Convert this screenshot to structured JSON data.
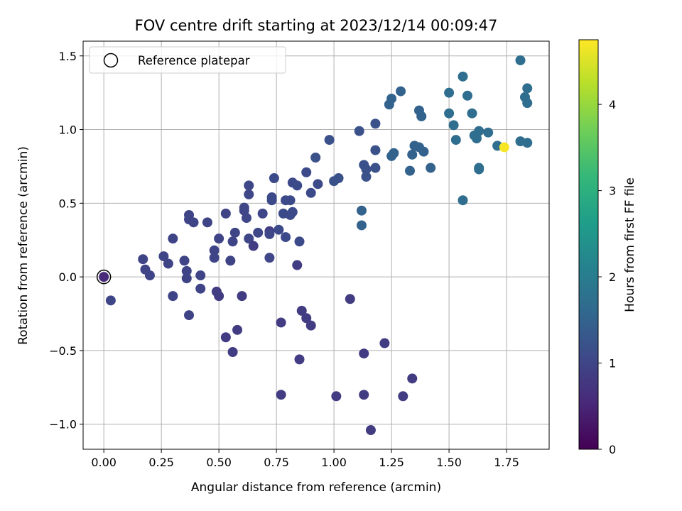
{
  "chart_data": {
    "type": "scatter",
    "title": "FOV centre drift starting at 2023/12/14 00:09:47",
    "xlabel": "Angular distance from reference (arcmin)",
    "ylabel": "Rotation from reference (arcmin)",
    "xlim": [
      -0.09,
      1.935
    ],
    "ylim": [
      -1.17,
      1.6
    ],
    "xticks": [
      0.0,
      0.25,
      0.5,
      0.75,
      1.0,
      1.25,
      1.5,
      1.75
    ],
    "xtick_labels": [
      "0.00",
      "0.25",
      "0.50",
      "0.75",
      "1.00",
      "1.25",
      "1.50",
      "1.75"
    ],
    "yticks": [
      -1.0,
      -0.5,
      0.0,
      0.5,
      1.0,
      1.5
    ],
    "ytick_labels": [
      "−1.0",
      "−0.5",
      "0.0",
      "0.5",
      "1.0",
      "1.5"
    ],
    "grid": true,
    "legend": {
      "position": "upper-left",
      "entries": [
        "Reference platepar"
      ]
    },
    "colorbar": {
      "label": "Hours from first FF file",
      "range": [
        0,
        4.75
      ],
      "ticks": [
        0,
        1,
        2,
        3,
        4
      ],
      "tick_labels": [
        "0",
        "1",
        "2",
        "3",
        "4"
      ],
      "colormap": "viridis",
      "colormap_stops": [
        "#440154",
        "#482878",
        "#3e4989",
        "#31688e",
        "#26828e",
        "#1f9e89",
        "#35b779",
        "#6ece58",
        "#b5de2b",
        "#fde725"
      ]
    },
    "reference_point": {
      "x": 0.0,
      "y": 0.0,
      "marker_color": "#000000"
    },
    "points": [
      {
        "x": 0.0,
        "y": 0.0,
        "c": 0.58
      },
      {
        "x": 0.03,
        "y": -0.16,
        "c": 1.0
      },
      {
        "x": 0.17,
        "y": 0.12,
        "c": 0.98
      },
      {
        "x": 0.18,
        "y": 0.05,
        "c": 0.98
      },
      {
        "x": 0.2,
        "y": 0.01,
        "c": 0.98
      },
      {
        "x": 0.26,
        "y": 0.14,
        "c": 0.98
      },
      {
        "x": 0.28,
        "y": 0.09,
        "c": 0.98
      },
      {
        "x": 0.3,
        "y": 0.26,
        "c": 0.98
      },
      {
        "x": 0.3,
        "y": -0.13,
        "c": 0.98
      },
      {
        "x": 0.35,
        "y": 0.11,
        "c": 0.98
      },
      {
        "x": 0.36,
        "y": 0.04,
        "c": 0.98
      },
      {
        "x": 0.36,
        "y": -0.01,
        "c": 0.98
      },
      {
        "x": 0.37,
        "y": 0.42,
        "c": 0.98
      },
      {
        "x": 0.37,
        "y": 0.39,
        "c": 0.98
      },
      {
        "x": 0.37,
        "y": -0.26,
        "c": 0.98
      },
      {
        "x": 0.39,
        "y": 0.37,
        "c": 0.98
      },
      {
        "x": 0.42,
        "y": 0.01,
        "c": 0.98
      },
      {
        "x": 0.42,
        "y": -0.08,
        "c": 0.98
      },
      {
        "x": 0.45,
        "y": 0.37,
        "c": 0.98
      },
      {
        "x": 0.48,
        "y": 0.18,
        "c": 0.98
      },
      {
        "x": 0.48,
        "y": 0.13,
        "c": 0.98
      },
      {
        "x": 0.49,
        "y": -0.1,
        "c": 0.85
      },
      {
        "x": 0.5,
        "y": 0.26,
        "c": 0.98
      },
      {
        "x": 0.5,
        "y": -0.13,
        "c": 0.85
      },
      {
        "x": 0.53,
        "y": 0.43,
        "c": 0.98
      },
      {
        "x": 0.53,
        "y": -0.41,
        "c": 0.85
      },
      {
        "x": 0.55,
        "y": 0.11,
        "c": 0.98
      },
      {
        "x": 0.56,
        "y": 0.24,
        "c": 0.98
      },
      {
        "x": 0.56,
        "y": -0.51,
        "c": 0.85
      },
      {
        "x": 0.57,
        "y": 0.3,
        "c": 0.98
      },
      {
        "x": 0.58,
        "y": -0.36,
        "c": 0.85
      },
      {
        "x": 0.6,
        "y": -0.13,
        "c": 0.85
      },
      {
        "x": 0.61,
        "y": 0.47,
        "c": 1.02
      },
      {
        "x": 0.61,
        "y": 0.45,
        "c": 1.02
      },
      {
        "x": 0.62,
        "y": 0.4,
        "c": 1.02
      },
      {
        "x": 0.63,
        "y": 0.62,
        "c": 1.02
      },
      {
        "x": 0.63,
        "y": 0.56,
        "c": 1.02
      },
      {
        "x": 0.63,
        "y": 0.26,
        "c": 1.02
      },
      {
        "x": 0.65,
        "y": 0.21,
        "c": 0.85
      },
      {
        "x": 0.67,
        "y": 0.3,
        "c": 1.02
      },
      {
        "x": 0.69,
        "y": 0.43,
        "c": 1.02
      },
      {
        "x": 0.72,
        "y": 0.31,
        "c": 0.85
      },
      {
        "x": 0.72,
        "y": 0.29,
        "c": 1.02
      },
      {
        "x": 0.72,
        "y": 0.13,
        "c": 1.02
      },
      {
        "x": 0.73,
        "y": 0.54,
        "c": 1.08
      },
      {
        "x": 0.73,
        "y": 0.52,
        "c": 1.08
      },
      {
        "x": 0.74,
        "y": 0.67,
        "c": 1.08
      },
      {
        "x": 0.76,
        "y": 0.32,
        "c": 1.08
      },
      {
        "x": 0.77,
        "y": -0.31,
        "c": 0.85
      },
      {
        "x": 0.77,
        "y": -0.8,
        "c": 0.85
      },
      {
        "x": 0.78,
        "y": 0.43,
        "c": 1.08
      },
      {
        "x": 0.79,
        "y": 0.52,
        "c": 1.08
      },
      {
        "x": 0.79,
        "y": 0.27,
        "c": 1.08
      },
      {
        "x": 0.81,
        "y": 0.52,
        "c": 1.08
      },
      {
        "x": 0.81,
        "y": 0.42,
        "c": 1.08
      },
      {
        "x": 0.82,
        "y": 0.64,
        "c": 1.08
      },
      {
        "x": 0.82,
        "y": 0.44,
        "c": 1.08
      },
      {
        "x": 0.84,
        "y": 0.62,
        "c": 1.08
      },
      {
        "x": 0.84,
        "y": 0.08,
        "c": 0.85
      },
      {
        "x": 0.85,
        "y": 0.24,
        "c": 1.08
      },
      {
        "x": 0.85,
        "y": -0.56,
        "c": 0.85
      },
      {
        "x": 0.86,
        "y": -0.23,
        "c": 0.85
      },
      {
        "x": 0.88,
        "y": 0.71,
        "c": 1.08
      },
      {
        "x": 0.88,
        "y": -0.28,
        "c": 0.85
      },
      {
        "x": 0.9,
        "y": 0.57,
        "c": 1.08
      },
      {
        "x": 0.9,
        "y": -0.33,
        "c": 0.85
      },
      {
        "x": 0.92,
        "y": 0.81,
        "c": 1.2
      },
      {
        "x": 0.93,
        "y": 0.63,
        "c": 1.08
      },
      {
        "x": 0.98,
        "y": 0.93,
        "c": 1.2
      },
      {
        "x": 1.0,
        "y": 0.65,
        "c": 1.2
      },
      {
        "x": 1.01,
        "y": -0.81,
        "c": 0.85
      },
      {
        "x": 1.02,
        "y": 0.67,
        "c": 1.2
      },
      {
        "x": 1.07,
        "y": -0.15,
        "c": 0.85
      },
      {
        "x": 1.11,
        "y": 0.99,
        "c": 1.2
      },
      {
        "x": 1.12,
        "y": 0.45,
        "c": 1.5
      },
      {
        "x": 1.12,
        "y": 0.35,
        "c": 1.5
      },
      {
        "x": 1.13,
        "y": 0.76,
        "c": 1.2
      },
      {
        "x": 1.13,
        "y": -0.52,
        "c": 0.85
      },
      {
        "x": 1.13,
        "y": -0.8,
        "c": 0.85
      },
      {
        "x": 1.14,
        "y": 0.73,
        "c": 1.2
      },
      {
        "x": 1.14,
        "y": 0.68,
        "c": 1.2
      },
      {
        "x": 1.16,
        "y": -1.04,
        "c": 0.85
      },
      {
        "x": 1.18,
        "y": 1.04,
        "c": 1.2
      },
      {
        "x": 1.18,
        "y": 0.86,
        "c": 1.2
      },
      {
        "x": 1.18,
        "y": 0.74,
        "c": 1.2
      },
      {
        "x": 1.22,
        "y": -0.45,
        "c": 0.85
      },
      {
        "x": 1.24,
        "y": 1.17,
        "c": 1.5
      },
      {
        "x": 1.25,
        "y": 1.21,
        "c": 1.5
      },
      {
        "x": 1.25,
        "y": 0.82,
        "c": 1.5
      },
      {
        "x": 1.26,
        "y": 0.84,
        "c": 1.5
      },
      {
        "x": 1.29,
        "y": 1.26,
        "c": 1.5
      },
      {
        "x": 1.3,
        "y": -0.81,
        "c": 0.85
      },
      {
        "x": 1.33,
        "y": 0.72,
        "c": 1.5
      },
      {
        "x": 1.34,
        "y": 0.83,
        "c": 1.5
      },
      {
        "x": 1.34,
        "y": -0.69,
        "c": 0.85
      },
      {
        "x": 1.35,
        "y": 0.89,
        "c": 1.5
      },
      {
        "x": 1.37,
        "y": 0.88,
        "c": 1.5
      },
      {
        "x": 1.37,
        "y": 1.13,
        "c": 1.5
      },
      {
        "x": 1.38,
        "y": 1.09,
        "c": 1.5
      },
      {
        "x": 1.39,
        "y": 0.85,
        "c": 1.5
      },
      {
        "x": 1.42,
        "y": 0.74,
        "c": 1.5
      },
      {
        "x": 1.5,
        "y": 1.25,
        "c": 1.7
      },
      {
        "x": 1.5,
        "y": 1.11,
        "c": 1.7
      },
      {
        "x": 1.52,
        "y": 1.03,
        "c": 1.7
      },
      {
        "x": 1.53,
        "y": 0.93,
        "c": 1.7
      },
      {
        "x": 1.56,
        "y": 1.36,
        "c": 1.7
      },
      {
        "x": 1.56,
        "y": 0.52,
        "c": 1.7
      },
      {
        "x": 1.58,
        "y": 1.23,
        "c": 1.7
      },
      {
        "x": 1.6,
        "y": 1.11,
        "c": 1.7
      },
      {
        "x": 1.61,
        "y": 0.96,
        "c": 1.7
      },
      {
        "x": 1.62,
        "y": 0.94,
        "c": 1.7
      },
      {
        "x": 1.63,
        "y": 0.99,
        "c": 1.7
      },
      {
        "x": 1.63,
        "y": 0.74,
        "c": 1.7
      },
      {
        "x": 1.63,
        "y": 0.73,
        "c": 1.7
      },
      {
        "x": 1.67,
        "y": 0.98,
        "c": 1.7
      },
      {
        "x": 1.71,
        "y": 0.89,
        "c": 1.7
      },
      {
        "x": 1.74,
        "y": 0.88,
        "c": 4.7
      },
      {
        "x": 1.81,
        "y": 1.47,
        "c": 1.7
      },
      {
        "x": 1.81,
        "y": 0.92,
        "c": 1.7
      },
      {
        "x": 1.83,
        "y": 1.22,
        "c": 1.7
      },
      {
        "x": 1.84,
        "y": 1.28,
        "c": 1.7
      },
      {
        "x": 1.84,
        "y": 1.18,
        "c": 1.7
      },
      {
        "x": 1.84,
        "y": 0.91,
        "c": 1.7
      }
    ]
  }
}
